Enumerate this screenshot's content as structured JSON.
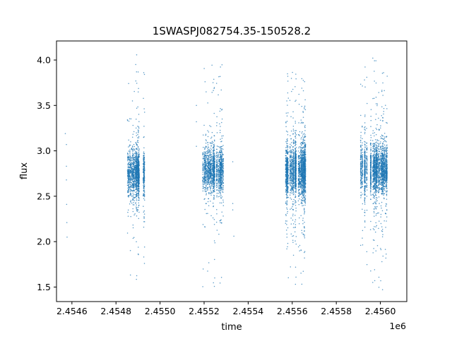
{
  "chart_data": {
    "type": "scatter",
    "title": "1SWASPJ082754.35-150528.2",
    "xlabel": "time",
    "ylabel": "flux",
    "x_offset_label": "1e6",
    "x_scale": 1000000,
    "xlim": [
      2454530,
      2456120
    ],
    "ylim": [
      1.34,
      4.21
    ],
    "x_ticks": [
      2454600,
      2454800,
      2455000,
      2455200,
      2455400,
      2455600,
      2455800,
      2456000
    ],
    "x_tick_labels": [
      "2.4546",
      "2.4548",
      "2.4550",
      "2.4552",
      "2.4554",
      "2.4556",
      "2.4558",
      "2.4560"
    ],
    "y_ticks": [
      1.5,
      2.0,
      2.5,
      3.0,
      3.5,
      4.0
    ],
    "y_tick_labels": [
      "1.5",
      "2.0",
      "2.5",
      "3.0",
      "3.5",
      "4.0"
    ],
    "grid": false,
    "marker_color": "#1f77b4",
    "seasons": [
      {
        "x_start": 2454845,
        "x_end": 2454935,
        "center": 2.76,
        "spread": 0.11,
        "outlier_low": 1.47,
        "outlier_high": 4.08,
        "n": 1600
      },
      {
        "x_start": 2455195,
        "x_end": 2455290,
        "center": 2.79,
        "spread": 0.11,
        "outlier_low": 1.48,
        "outlier_high": 3.95,
        "n": 1600
      },
      {
        "x_start": 2455555,
        "x_end": 2455665,
        "center": 2.78,
        "spread": 0.13,
        "outlier_low": 1.5,
        "outlier_high": 3.9,
        "n": 2400
      },
      {
        "x_start": 2455910,
        "x_end": 2456035,
        "center": 2.79,
        "spread": 0.13,
        "outlier_low": 1.47,
        "outlier_high": 4.05,
        "n": 2400
      }
    ],
    "sparse_points": [
      {
        "x": 2454570,
        "y": 3.19
      },
      {
        "x": 2454575,
        "y": 3.07
      },
      {
        "x": 2454575,
        "y": 2.83
      },
      {
        "x": 2454575,
        "y": 2.68
      },
      {
        "x": 2454576,
        "y": 2.41
      },
      {
        "x": 2454577,
        "y": 2.21
      },
      {
        "x": 2454578,
        "y": 2.05
      },
      {
        "x": 2455165,
        "y": 3.5
      },
      {
        "x": 2455165,
        "y": 3.32
      },
      {
        "x": 2455165,
        "y": 3.05
      },
      {
        "x": 2455330,
        "y": 2.88
      },
      {
        "x": 2455330,
        "y": 2.42
      },
      {
        "x": 2455330,
        "y": 2.35
      },
      {
        "x": 2455335,
        "y": 2.06
      }
    ]
  }
}
